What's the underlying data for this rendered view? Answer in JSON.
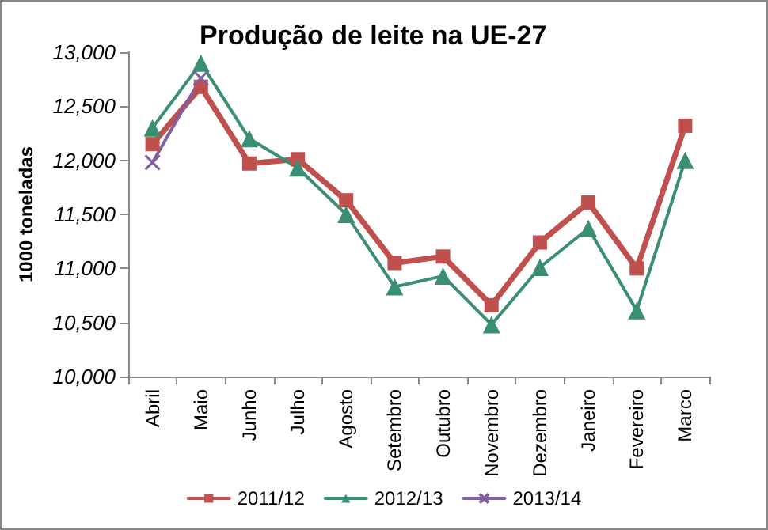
{
  "chart_data": {
    "type": "line",
    "title": "Produção de leite na UE-27",
    "ylabel": "1000 toneladas",
    "categories": [
      "Abril",
      "Maio",
      "Junho",
      "Julho",
      "Agosto",
      "Setembro",
      "Outubro",
      "Novembro",
      "Dezembro",
      "Janeiro",
      "Fevereiro",
      "Marco"
    ],
    "series": [
      {
        "name": "2011/12",
        "color": "#c0504d",
        "marker": "square",
        "values": [
          12150,
          12680,
          11970,
          12010,
          11630,
          11050,
          11110,
          10660,
          11240,
          11610,
          11000,
          12320
        ]
      },
      {
        "name": "2012/13",
        "color": "#3a8f73",
        "marker": "triangle",
        "values": [
          12300,
          12900,
          12200,
          11930,
          11500,
          10830,
          10930,
          10480,
          11010,
          11370,
          10610,
          12000
        ]
      },
      {
        "name": "2013/14",
        "color": "#7f5f9f",
        "marker": "cross",
        "values": [
          11980,
          12760,
          null,
          null,
          null,
          null,
          null,
          null,
          null,
          null,
          null,
          null
        ]
      }
    ],
    "ylim": [
      10000,
      13000
    ],
    "yticks": [
      {
        "value": 10000,
        "label": "10,000"
      },
      {
        "value": 10500,
        "label": "10,500"
      },
      {
        "value": 11000,
        "label": "11,000"
      },
      {
        "value": 11500,
        "label": "11,500"
      },
      {
        "value": 12000,
        "label": "12,000"
      },
      {
        "value": 12500,
        "label": "12,500"
      },
      {
        "value": 13000,
        "label": "13,000"
      }
    ],
    "grid": false,
    "legend": "bottom"
  }
}
